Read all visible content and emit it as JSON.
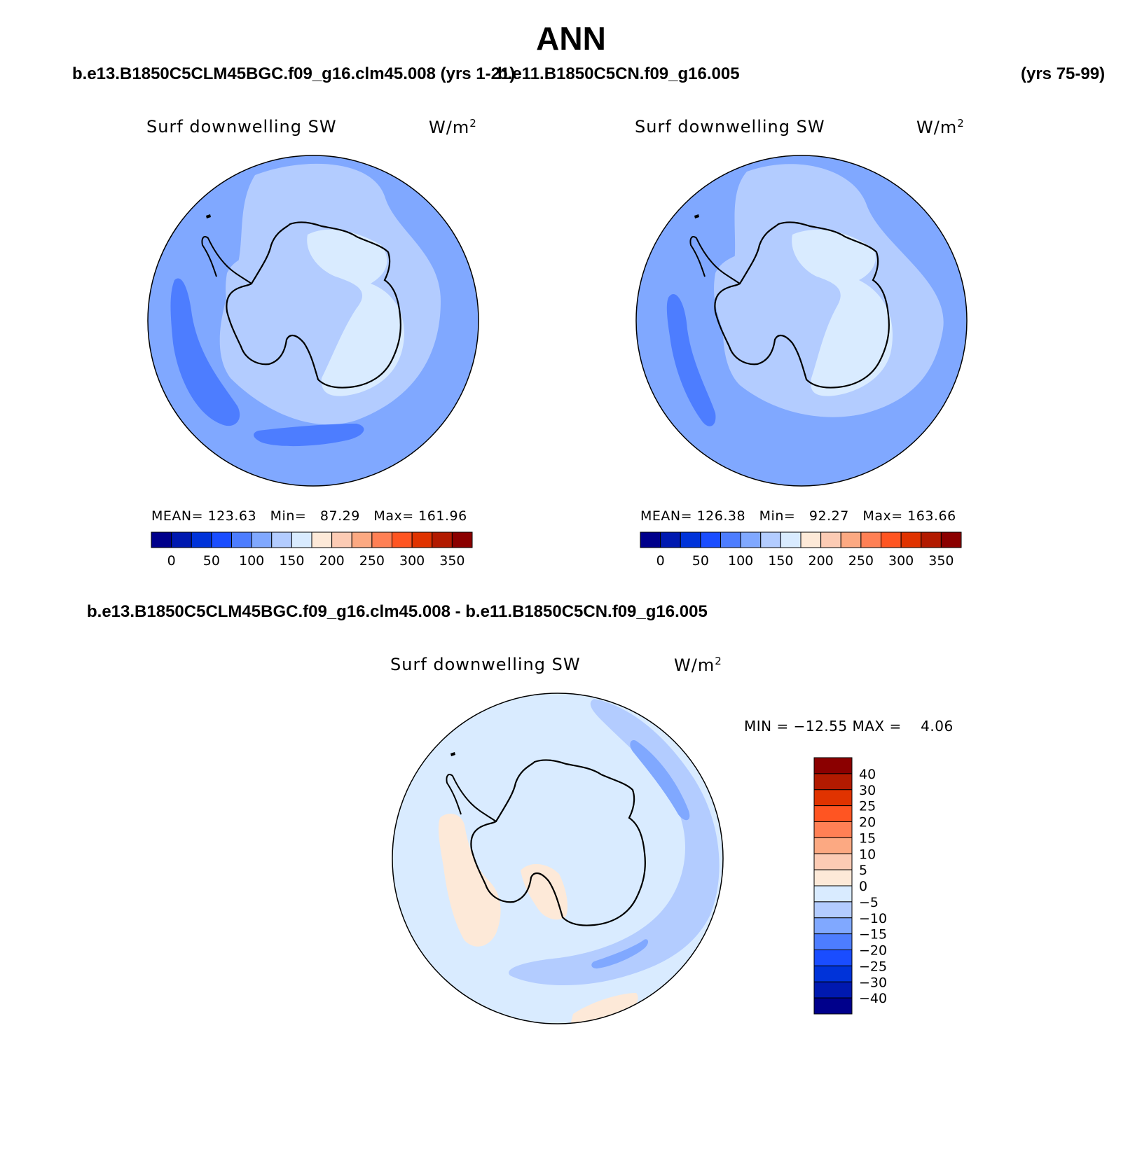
{
  "page": {
    "title": "ANN",
    "case1_header": "b.e13.B1850C5CLM45BGC.f09_g16.clm45.008 (yrs 1-21)",
    "case2_header": "b.e11.B1850C5CN.f09_g16.005",
    "case2_years": "(yrs 75-99)",
    "diff_header": "b.e13.B1850C5CLM45BGC.f09_g16.clm45.008 - b.e11.B1850C5CN.f09_g16.005"
  },
  "panels": [
    {
      "variable": "Surf downwelling SW",
      "units_base": "W/m",
      "units_exp": "2",
      "stats": "MEAN= 123.63   Min=   87.29   Max= 161.96"
    },
    {
      "variable": "Surf downwelling SW",
      "units_base": "W/m",
      "units_exp": "2",
      "stats": "MEAN= 126.38   Min=   92.27   Max= 163.66"
    }
  ],
  "abs_colorbar": {
    "colors": [
      "#00008b",
      "#0019b0",
      "#0033d9",
      "#1a4dff",
      "#4d7dff",
      "#80a8ff",
      "#b3ccff",
      "#d9ebff",
      "#fde9d8",
      "#fccbb4",
      "#fca982",
      "#ff8055",
      "#ff5522",
      "#e03300",
      "#b21a00",
      "#8b0000"
    ],
    "labels": [
      "0",
      "50",
      "100",
      "150",
      "200",
      "250",
      "300",
      "350"
    ]
  },
  "diff_panel": {
    "variable": "Surf downwelling SW",
    "units_base": "W/m",
    "units_exp": "2",
    "stats": "MIN = −12.55 MAX =    4.06"
  },
  "diff_colorbar": {
    "colors_top_to_bottom": [
      "#8b0000",
      "#b21a00",
      "#e03300",
      "#ff5522",
      "#ff8055",
      "#fca982",
      "#fccbb4",
      "#fde9d8",
      "#d9ebff",
      "#b3ccff",
      "#80a8ff",
      "#4d7dff",
      "#1a4dff",
      "#0033d9",
      "#0019b0",
      "#00008b"
    ],
    "labels_top_to_bottom": [
      "40",
      "30",
      "25",
      "20",
      "15",
      "10",
      "5",
      "0",
      "−5",
      "−10",
      "−15",
      "−20",
      "−25",
      "−30",
      "−40"
    ]
  },
  "map_colors": {
    "ocean_mid": "#80a8ff",
    "ocean_light": "#b3ccff",
    "ice_lightest": "#d9ebff",
    "ocean_dark": "#4d7dff",
    "diff_base": "#d9ebff",
    "diff_pos": "#fde9d8"
  }
}
